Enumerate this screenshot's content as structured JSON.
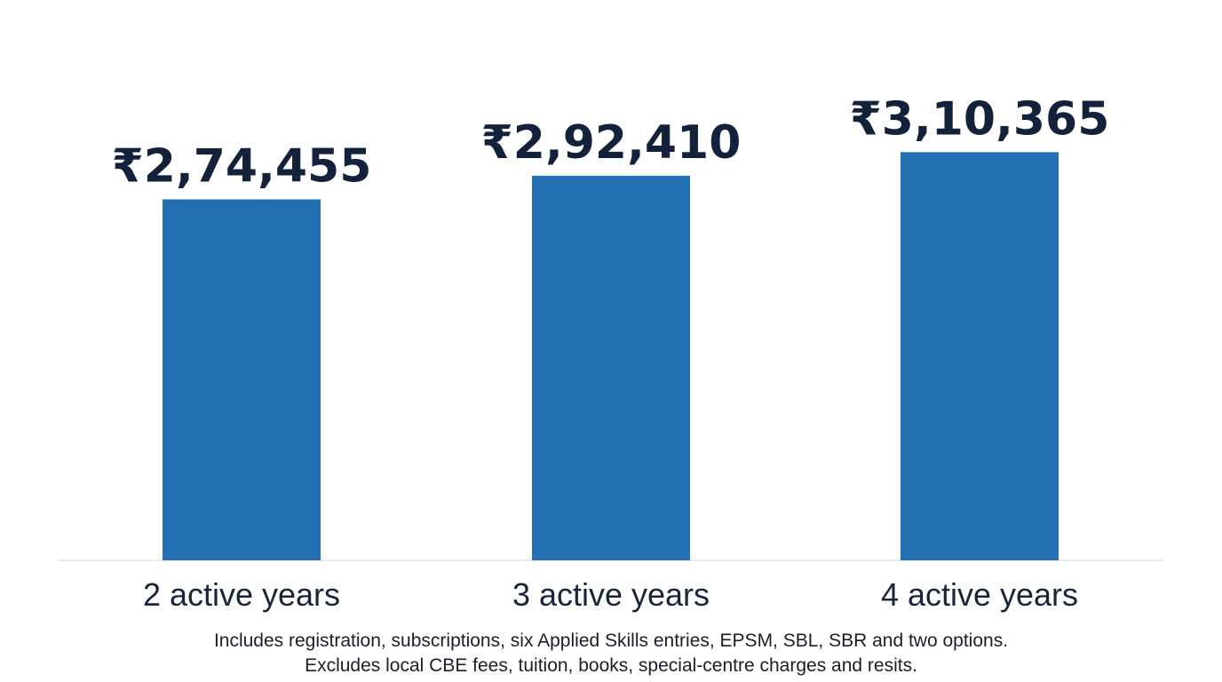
{
  "chart_data": {
    "type": "bar",
    "categories": [
      "2 active years",
      "3 active years",
      "4 active years"
    ],
    "values": [
      274455,
      292410,
      310365
    ],
    "value_labels": [
      "₹2,74,455",
      "₹2,92,410",
      "₹3,10,365"
    ],
    "title": "",
    "xlabel": "",
    "ylabel": "",
    "ylim": [
      0,
      345000
    ],
    "grid": false,
    "bar_color": "#2470b3",
    "label_color": "#14213a",
    "axis_color": "#e3e3e3"
  },
  "notes": {
    "line1": "Includes registration, subscriptions, six Applied Skills entries, EPSM, SBL, SBR and two options.",
    "line2": "Excludes local CBE fees, tuition, books, special-centre charges and resits."
  }
}
